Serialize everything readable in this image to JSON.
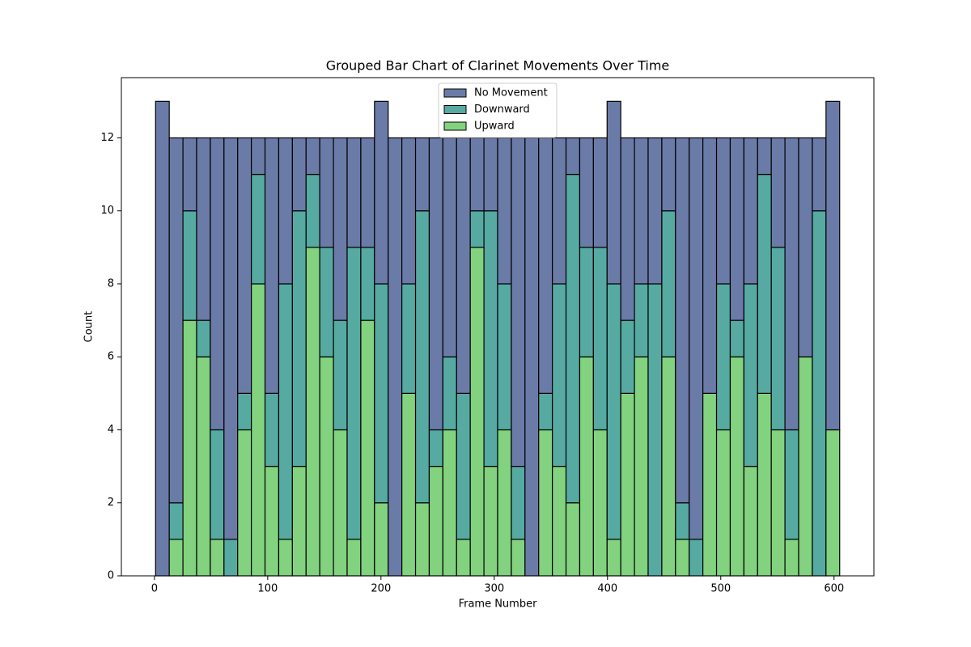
{
  "chart_data": {
    "type": "histogram",
    "title": "Grouped Bar Chart of Clarinet Movements Over Time",
    "x_label": "Frame Number",
    "y_label": "Count",
    "bins": [
      1,
      13.08,
      25.16,
      37.24,
      49.32,
      61.4,
      73.48,
      85.56,
      97.64,
      109.72,
      121.8,
      133.88,
      145.96,
      158.04,
      170.12,
      182.2,
      194.28,
      206.36,
      218.44,
      230.52,
      242.6,
      254.68,
      266.76,
      278.84,
      290.92,
      303,
      315.08,
      327.16,
      339.24,
      351.32,
      363.4,
      375.48,
      387.56,
      399.64,
      411.72,
      423.8,
      435.88,
      447.96,
      460.04,
      472.12,
      484.2,
      496.28,
      508.36,
      520.44,
      532.52,
      544.6,
      556.68,
      568.76,
      580.84,
      592.92,
      605
    ],
    "series": [
      {
        "name": "No Movement",
        "color": "#6b7ba8",
        "values": [
          13,
          10,
          2,
          5,
          8,
          11,
          7,
          1,
          7,
          4,
          2,
          1,
          3,
          5,
          3,
          3,
          5,
          12,
          4,
          2,
          8,
          6,
          7,
          2,
          2,
          4,
          9,
          12,
          7,
          4,
          1,
          3,
          3,
          5,
          5,
          4,
          4,
          2,
          10,
          11,
          7,
          4,
          5,
          4,
          1,
          3,
          8,
          6,
          2,
          9
        ]
      },
      {
        "name": "Downward",
        "color": "#56aaa2",
        "values": [
          0,
          1,
          3,
          1,
          3,
          1,
          1,
          3,
          2,
          7,
          7,
          2,
          3,
          3,
          8,
          2,
          6,
          0,
          3,
          8,
          1,
          2,
          4,
          1,
          7,
          4,
          2,
          0,
          1,
          5,
          9,
          3,
          5,
          7,
          2,
          2,
          8,
          4,
          1,
          1,
          0,
          4,
          1,
          5,
          6,
          5,
          3,
          0,
          10,
          0
        ]
      },
      {
        "name": "Upward",
        "color": "#82d27f",
        "values": [
          0,
          1,
          7,
          6,
          1,
          0,
          4,
          8,
          3,
          1,
          3,
          9,
          6,
          4,
          1,
          7,
          2,
          0,
          5,
          2,
          3,
          4,
          1,
          9,
          3,
          4,
          1,
          0,
          4,
          3,
          2,
          6,
          4,
          1,
          5,
          6,
          0,
          6,
          1,
          0,
          5,
          4,
          6,
          3,
          5,
          4,
          1,
          6,
          0,
          4
        ]
      }
    ],
    "xlim": [
      -29.2,
      635.2
    ],
    "xticks": [
      0,
      100,
      200,
      300,
      400,
      500,
      600
    ],
    "ylim": [
      0,
      13.65
    ],
    "yticks": [
      0,
      2,
      4,
      6,
      8,
      10,
      12
    ],
    "legend": "upper center"
  }
}
